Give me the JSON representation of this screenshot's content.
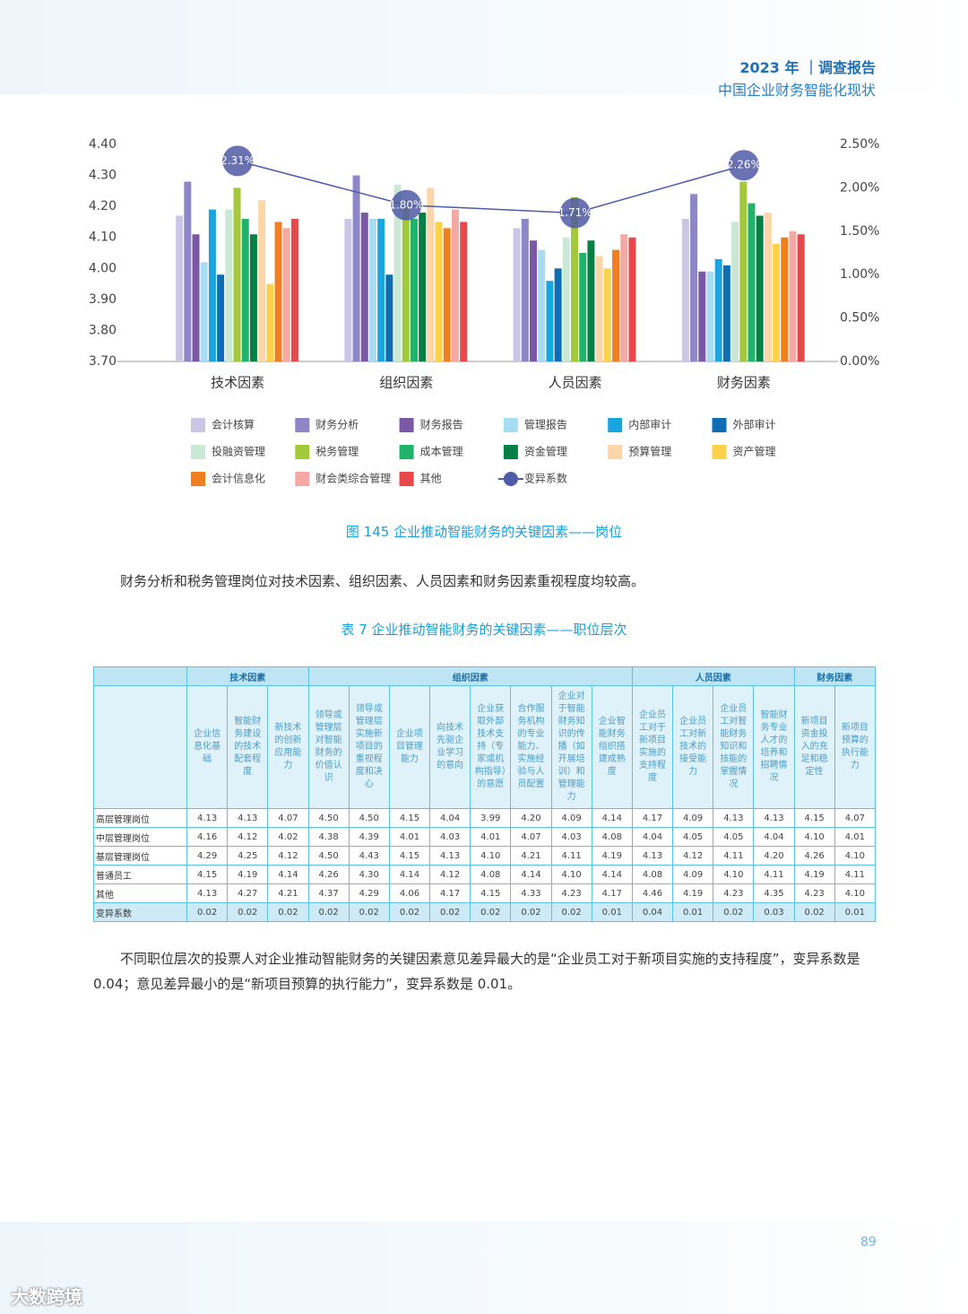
{
  "header": {
    "title": "2023 年 ｜调查报告",
    "subtitle": "中国企业财务智能化现状"
  },
  "chart_data": {
    "type": "bar",
    "categories": [
      "技术因素",
      "组织因素",
      "人员因素",
      "财务因素"
    ],
    "ylim": [
      3.7,
      4.4
    ],
    "yticks": [
      {
        "value": 3.7,
        "label": "3.70"
      },
      {
        "value": 3.8,
        "label": "3.80"
      },
      {
        "value": 3.9,
        "label": "3.90"
      },
      {
        "value": 4.0,
        "label": "4.00"
      },
      {
        "value": 4.1,
        "label": "4.10"
      },
      {
        "value": 4.2,
        "label": "4.20"
      },
      {
        "value": 4.3,
        "label": "4.30"
      },
      {
        "value": 4.4,
        "label": "4.40"
      }
    ],
    "y2lim": [
      0,
      2.5
    ],
    "y2ticks": [
      {
        "value": 0,
        "label": "0.00%"
      },
      {
        "value": 0.5,
        "label": "0.50%"
      },
      {
        "value": 1,
        "label": "1.00%"
      },
      {
        "value": 1.5,
        "label": "1.50%"
      },
      {
        "value": 2,
        "label": "2.00%"
      },
      {
        "value": 2.5,
        "label": "2.50%"
      }
    ],
    "grid": false,
    "legend": "bottom",
    "series": [
      {
        "name": "会计核算",
        "color": "#ccc6e6",
        "values": [
          4.17,
          4.16,
          4.13,
          4.16
        ]
      },
      {
        "name": "财务分析",
        "color": "#8e86c7",
        "values": [
          4.28,
          4.3,
          4.16,
          4.24
        ]
      },
      {
        "name": "财务报告",
        "color": "#7a58a6",
        "values": [
          4.11,
          4.18,
          4.09,
          3.99
        ]
      },
      {
        "name": "管理报告",
        "color": "#a8dcf3",
        "values": [
          4.02,
          4.16,
          4.06,
          3.99
        ]
      },
      {
        "name": "内部审计",
        "color": "#1ba5e0",
        "values": [
          4.19,
          4.16,
          3.96,
          4.03
        ]
      },
      {
        "name": "外部审计",
        "color": "#0d6db5",
        "values": [
          3.98,
          3.98,
          4.0,
          4.01
        ]
      },
      {
        "name": "投融资管理",
        "color": "#cbe7d6",
        "values": [
          4.19,
          4.27,
          4.1,
          4.15
        ]
      },
      {
        "name": "税务管理",
        "color": "#a3c83a",
        "values": [
          4.26,
          4.22,
          4.23,
          4.28
        ]
      },
      {
        "name": "成本管理",
        "color": "#21b26b",
        "values": [
          4.16,
          4.16,
          4.05,
          4.21
        ]
      },
      {
        "name": "资金管理",
        "color": "#087f45",
        "values": [
          4.11,
          4.18,
          4.09,
          4.17
        ]
      },
      {
        "name": "预算管理",
        "color": "#fcd6a8",
        "values": [
          4.22,
          4.26,
          4.04,
          4.18
        ]
      },
      {
        "name": "资产管理",
        "color": "#fbd34b",
        "values": [
          3.95,
          4.15,
          4.0,
          4.08
        ]
      },
      {
        "name": "会计信息化",
        "color": "#f07f22",
        "values": [
          4.15,
          4.13,
          4.06,
          4.1
        ]
      },
      {
        "name": "财会类综合管理",
        "color": "#f5a9a4",
        "values": [
          4.13,
          4.19,
          4.11,
          4.12
        ]
      },
      {
        "name": "其他",
        "color": "#e8474c",
        "values": [
          4.16,
          4.15,
          4.1,
          4.11
        ]
      },
      {
        "name": "变异系数",
        "color": "#4f5ba6",
        "type": "line",
        "axis": "y2",
        "values": [
          2.31,
          1.8,
          1.71,
          2.26
        ],
        "value_labels": [
          "2.31%",
          "1.80%",
          "1.71%",
          "2.26%"
        ]
      }
    ]
  },
  "caption": "图 145  企业推动智能财务的关键因素——岗位",
  "paragraph1": "财务分析和税务管理岗位对技术因素、组织因素、人员因素和财务因素重视程度均较高。",
  "table": {
    "title": "表 7 企业推动智能财务的关键因素——职位层次",
    "groups": [
      {
        "name": "技术因素",
        "columns": [
          "企业信息化基础",
          "智能财务建设的技术配套程度",
          "新技术的创新应用能力"
        ]
      },
      {
        "name": "组织因素",
        "columns": [
          "领导或管理层对智能财务的价值认识",
          "领导或管理层实施新项目的重视程度和决心",
          "企业项目管理能力",
          "向技术先驱企业学习的意向",
          "企业获取外部技术支持（专家或机构指导）的意愿",
          "合作服务机构的专业能力、实施经验与人员配置",
          "企业对于智能财务知识的传播（如开展培训）和管理能力",
          "企业智能财务组织搭建成熟度"
        ]
      },
      {
        "name": "人员因素",
        "columns": [
          "企业员工对于新项目实施的支持程度",
          "企业员工对新技术的接受能力",
          "企业员工对智能财务知识和技能的掌握情况",
          "智能财务专业人才的培养和招聘情况"
        ]
      },
      {
        "name": "财务因素",
        "columns": [
          "新项目资金投入的充足和稳定性",
          "新项目预算的执行能力"
        ]
      }
    ],
    "rows": [
      {
        "label": "高层管理岗位",
        "cells": [
          "4.13",
          "4.13",
          "4.07",
          "4.50",
          "4.50",
          "4.15",
          "4.04",
          "3.99",
          "4.20",
          "4.09",
          "4.14",
          "4.17",
          "4.09",
          "4.13",
          "4.13",
          "4.15",
          "4.07"
        ]
      },
      {
        "label": "中层管理岗位",
        "cells": [
          "4.16",
          "4.12",
          "4.02",
          "4.38",
          "4.39",
          "4.01",
          "4.03",
          "4.01",
          "4.07",
          "4.03",
          "4.08",
          "4.04",
          "4.05",
          "4.05",
          "4.04",
          "4.10",
          "4.01"
        ]
      },
      {
        "label": "基层管理岗位",
        "cells": [
          "4.29",
          "4.25",
          "4.12",
          "4.50",
          "4.43",
          "4.15",
          "4.13",
          "4.10",
          "4.21",
          "4.11",
          "4.19",
          "4.13",
          "4.12",
          "4.11",
          "4.20",
          "4.26",
          "4.10"
        ]
      },
      {
        "label": "普通员工",
        "cells": [
          "4.15",
          "4.19",
          "4.14",
          "4.26",
          "4.30",
          "4.14",
          "4.12",
          "4.08",
          "4.14",
          "4.10",
          "4.14",
          "4.08",
          "4.09",
          "4.10",
          "4.11",
          "4.19",
          "4.11"
        ]
      },
      {
        "label": "其他",
        "cells": [
          "4.13",
          "4.27",
          "4.21",
          "4.37",
          "4.29",
          "4.06",
          "4.17",
          "4.15",
          "4.33",
          "4.23",
          "4.17",
          "4.46",
          "4.19",
          "4.23",
          "4.35",
          "4.23",
          "4.10"
        ]
      },
      {
        "label": "变异系数",
        "cells": [
          "0.02",
          "0.02",
          "0.02",
          "0.02",
          "0.02",
          "0.02",
          "0.02",
          "0.02",
          "0.02",
          "0.02",
          "0.01",
          "0.04",
          "0.01",
          "0.02",
          "0.03",
          "0.02",
          "0.01"
        ]
      }
    ]
  },
  "paragraph2": "不同职位层次的投票人对企业推动智能财务的关键因素意见差异最大的是“企业员工对于新项目实施的支持程度”，变异系数是 0.04；意见差异最小的是“新项目预算的执行能力”，变异系数是 0.01。",
  "page_number": "89",
  "logo": "大数跨境"
}
